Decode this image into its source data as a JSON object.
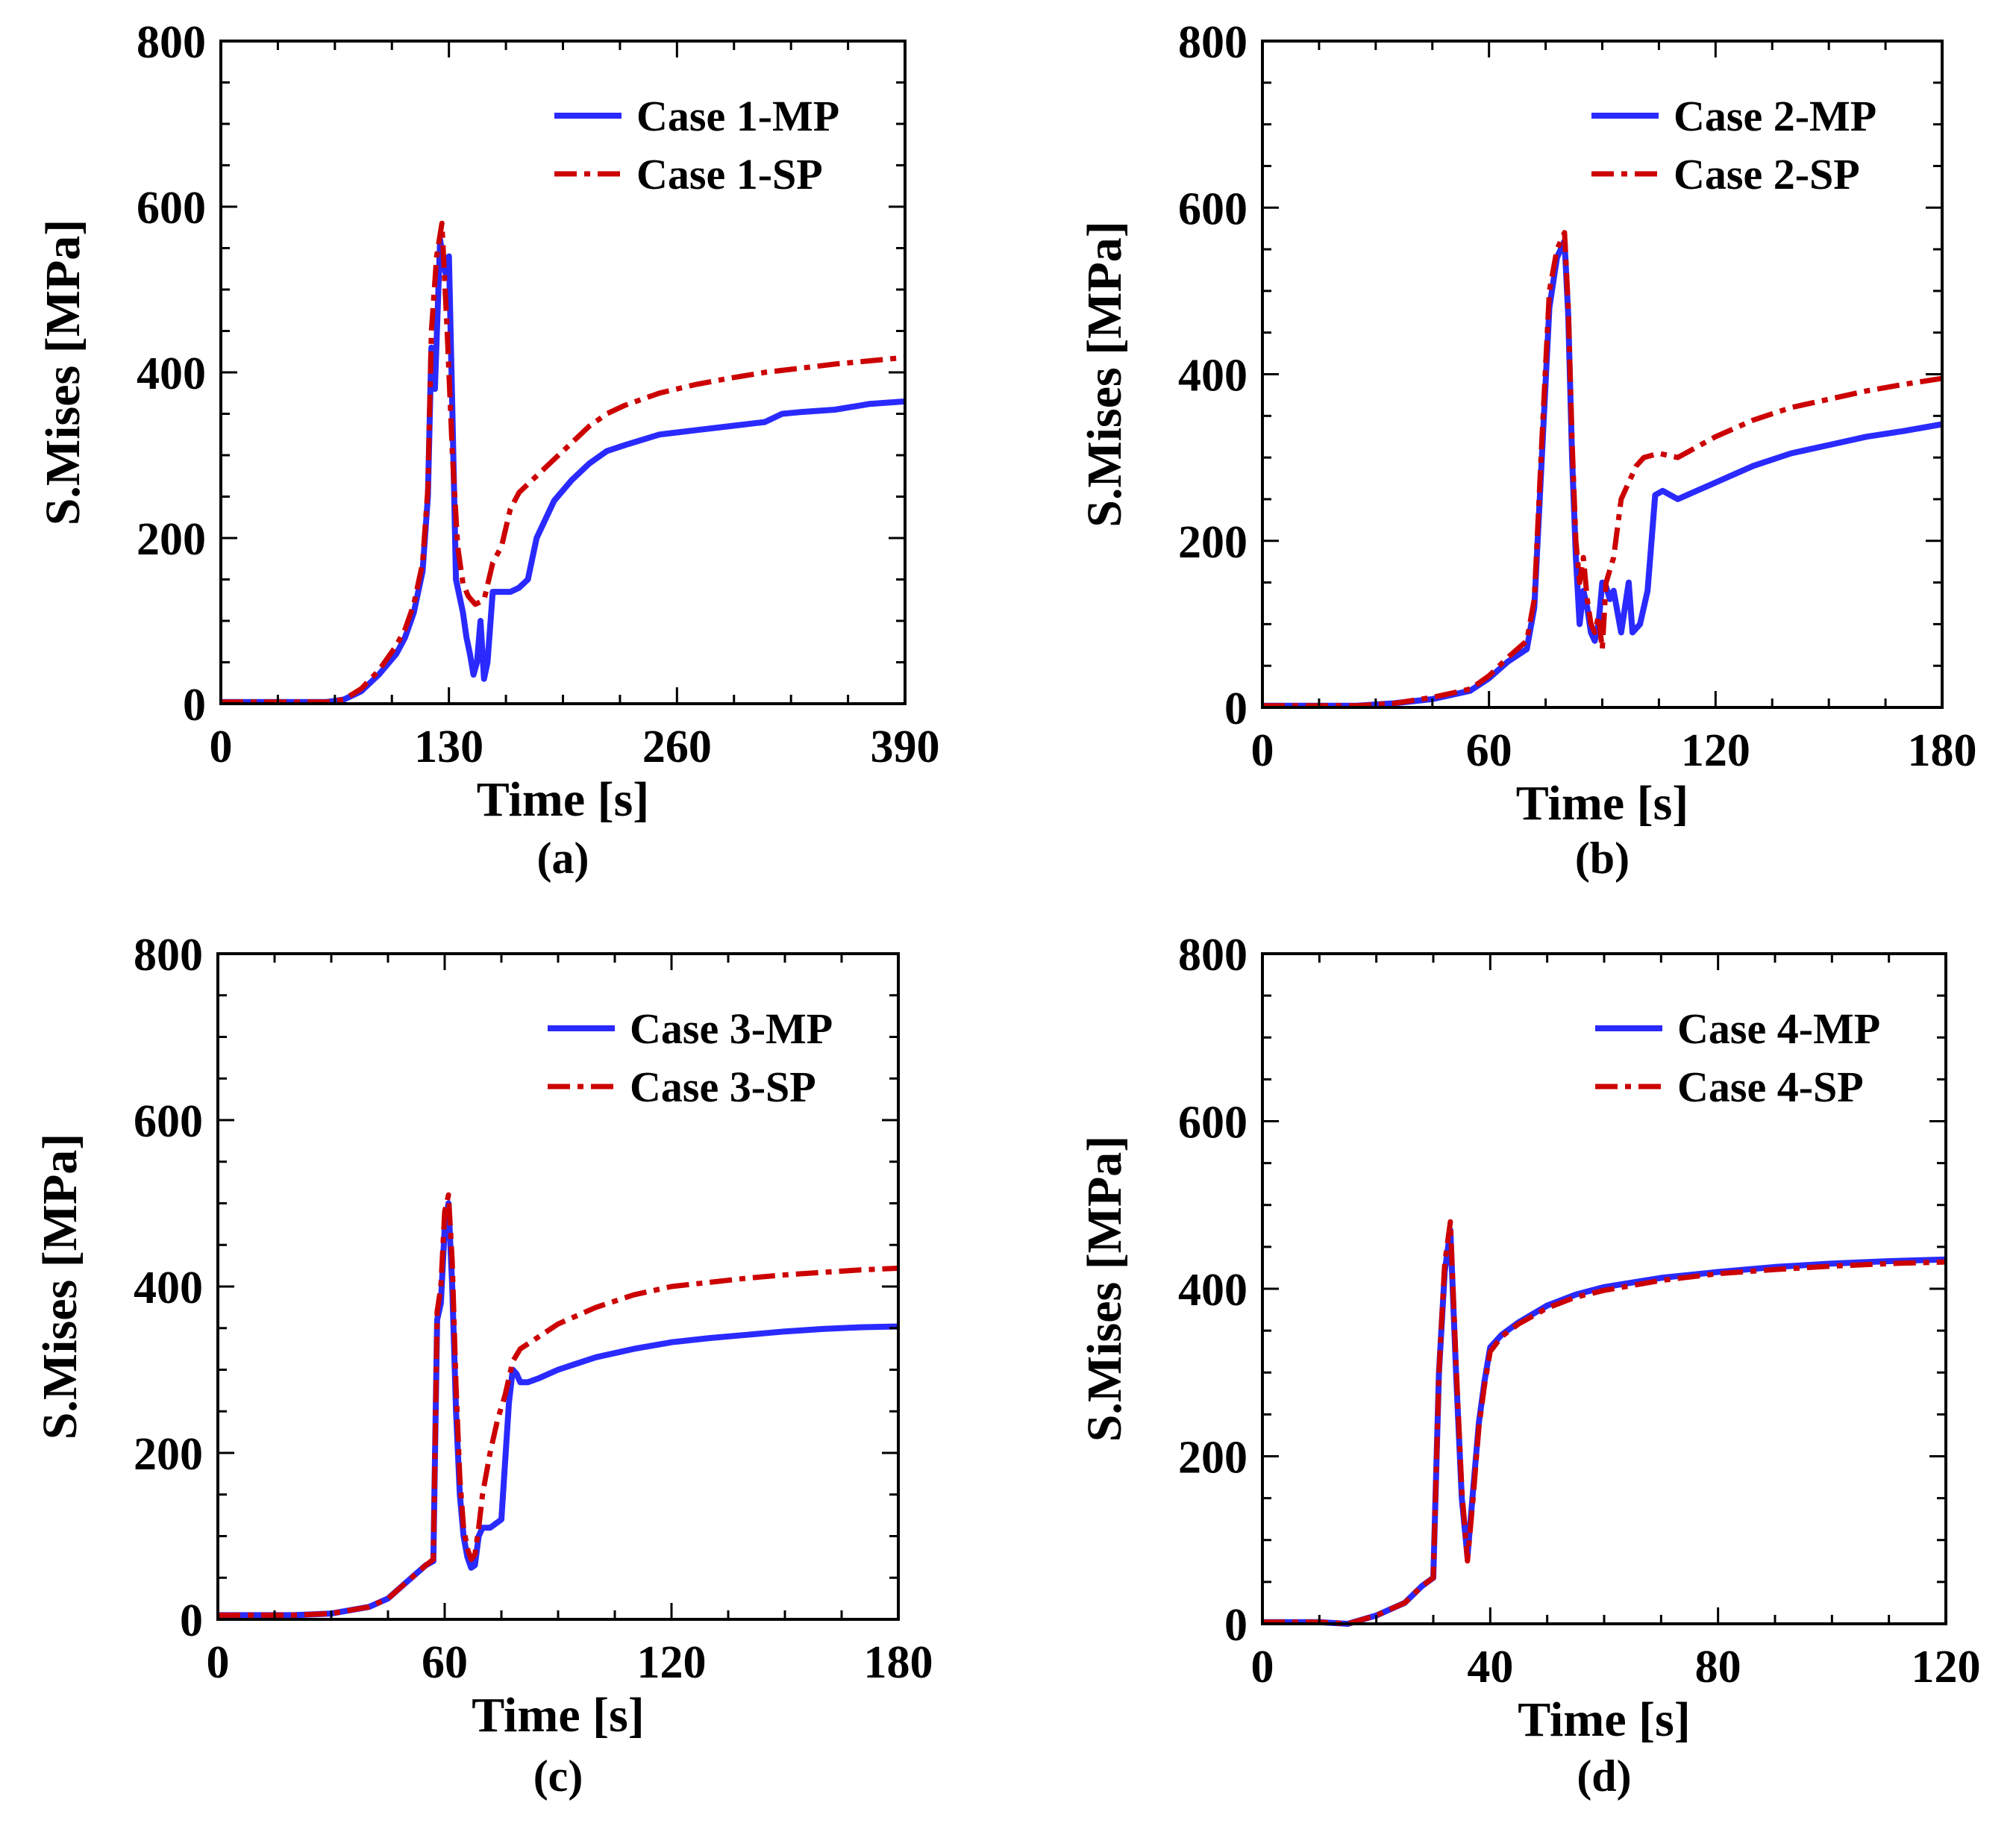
{
  "figure": {
    "colors": {
      "mp": "#2a2aff",
      "sp": "#cc0000",
      "axis": "#000000"
    }
  },
  "chart_data": [
    {
      "type": "line",
      "panel_label": "(a)",
      "xlabel": "Time [s]",
      "ylabel": "S.Mises [MPa]",
      "xlim": [
        0,
        390
      ],
      "ylim": [
        0,
        800
      ],
      "xticks": [
        0,
        130,
        260,
        390
      ],
      "xtick_labels": [
        "0",
        "130",
        "260",
        "390"
      ],
      "yticks": [
        0,
        200,
        400,
        600,
        800
      ],
      "ytick_labels": [
        "0",
        "200",
        "400",
        "600",
        "800"
      ],
      "legend_position": "top-right",
      "series": [
        {
          "name": "Case 1-MP",
          "style": "solid",
          "x": [
            0,
            30,
            60,
            70,
            80,
            90,
            100,
            105,
            110,
            115,
            118,
            120,
            122,
            125,
            128,
            130,
            132,
            134,
            136,
            138,
            140,
            142,
            144,
            146,
            148,
            150,
            152,
            155,
            160,
            165,
            170,
            175,
            180,
            190,
            200,
            210,
            220,
            230,
            250,
            270,
            290,
            310,
            320,
            330,
            350,
            370,
            390
          ],
          "y": [
            2,
            2,
            2,
            5,
            15,
            35,
            60,
            80,
            110,
            160,
            250,
            430,
            380,
            560,
            520,
            540,
            350,
            150,
            130,
            110,
            80,
            60,
            35,
            50,
            100,
            30,
            50,
            135,
            135,
            135,
            140,
            150,
            200,
            245,
            270,
            290,
            305,
            312,
            325,
            330,
            335,
            340,
            350,
            352,
            355,
            362,
            365
          ]
        },
        {
          "name": "Case 1-SP",
          "style": "dashdot",
          "x": [
            0,
            30,
            60,
            70,
            80,
            90,
            100,
            105,
            110,
            115,
            118,
            120,
            123,
            126,
            129,
            132,
            135,
            138,
            141,
            145,
            150,
            155,
            160,
            165,
            170,
            180,
            190,
            200,
            210,
            220,
            230,
            250,
            270,
            290,
            310,
            330,
            350,
            370,
            390
          ],
          "y": [
            2,
            2,
            2,
            5,
            18,
            40,
            70,
            90,
            120,
            170,
            260,
            450,
            540,
            580,
            450,
            300,
            190,
            145,
            130,
            120,
            125,
            170,
            190,
            235,
            255,
            275,
            295,
            315,
            335,
            350,
            360,
            375,
            385,
            393,
            400,
            405,
            410,
            414,
            418
          ]
        }
      ]
    },
    {
      "type": "line",
      "panel_label": "(b)",
      "xlabel": "Time [s]",
      "ylabel": "S.Mises [MPa]",
      "xlim": [
        0,
        180
      ],
      "ylim": [
        0,
        800
      ],
      "xticks": [
        0,
        60,
        120,
        180
      ],
      "xtick_labels": [
        "0",
        "60",
        "120",
        "180"
      ],
      "yticks": [
        0,
        200,
        400,
        600,
        800
      ],
      "ytick_labels": [
        "0",
        "200",
        "400",
        "600",
        "800"
      ],
      "legend_position": "top-right",
      "series": [
        {
          "name": "Case 2-MP",
          "style": "solid",
          "x": [
            0,
            25,
            35,
            45,
            55,
            60,
            65,
            70,
            72,
            74,
            76,
            78,
            80,
            81,
            82,
            83,
            84,
            85,
            86,
            87,
            88,
            89,
            90,
            91,
            92,
            93,
            95,
            97,
            98,
            100,
            102,
            104,
            106,
            110,
            120,
            130,
            140,
            150,
            160,
            170,
            180
          ],
          "y": [
            2,
            2,
            5,
            10,
            20,
            35,
            55,
            70,
            120,
            300,
            480,
            540,
            560,
            470,
            300,
            180,
            100,
            140,
            120,
            90,
            80,
            100,
            150,
            145,
            130,
            140,
            90,
            150,
            90,
            100,
            140,
            255,
            260,
            250,
            270,
            290,
            305,
            315,
            325,
            332,
            340
          ]
        },
        {
          "name": "Case 2-SP",
          "style": "dashdot",
          "x": [
            0,
            25,
            35,
            45,
            55,
            60,
            65,
            70,
            72,
            74,
            76,
            78,
            80,
            81,
            82,
            83,
            84,
            85,
            86,
            87,
            88,
            89,
            90,
            91,
            93,
            95,
            97,
            99,
            101,
            105,
            110,
            120,
            130,
            140,
            150,
            160,
            170,
            180
          ],
          "y": [
            2,
            2,
            5,
            12,
            22,
            38,
            60,
            80,
            130,
            320,
            500,
            550,
            570,
            480,
            320,
            200,
            150,
            180,
            130,
            100,
            90,
            110,
            70,
            150,
            180,
            250,
            270,
            290,
            300,
            305,
            300,
            325,
            345,
            360,
            370,
            380,
            388,
            395
          ]
        }
      ]
    },
    {
      "type": "line",
      "panel_label": "(c)",
      "xlabel": "Time [s]",
      "ylabel": "S.Mises [MPa]",
      "xlim": [
        0,
        180
      ],
      "ylim": [
        0,
        800
      ],
      "xticks": [
        0,
        60,
        120,
        180
      ],
      "xtick_labels": [
        "0",
        "60",
        "120",
        "180"
      ],
      "yticks": [
        0,
        200,
        400,
        600,
        800
      ],
      "ytick_labels": [
        "0",
        "200",
        "400",
        "600",
        "800"
      ],
      "legend_position": "top-right",
      "series": [
        {
          "name": "Case 3-MP",
          "style": "solid",
          "x": [
            0,
            20,
            30,
            40,
            45,
            50,
            55,
            57,
            58,
            59,
            60,
            61,
            62,
            63,
            64,
            65,
            66,
            67,
            68,
            69,
            70,
            72,
            75,
            77,
            78,
            79,
            80,
            82,
            85,
            90,
            100,
            110,
            120,
            130,
            140,
            150,
            160,
            170,
            180
          ],
          "y": [
            5,
            5,
            7,
            15,
            25,
            45,
            65,
            70,
            360,
            380,
            470,
            500,
            400,
            250,
            150,
            100,
            75,
            62,
            65,
            100,
            110,
            110,
            120,
            260,
            300,
            295,
            285,
            285,
            290,
            300,
            315,
            325,
            333,
            338,
            342,
            346,
            349,
            351,
            352
          ]
        },
        {
          "name": "Case 3-SP",
          "style": "dashdot",
          "x": [
            0,
            20,
            30,
            40,
            45,
            50,
            55,
            57,
            58,
            59,
            60,
            61,
            62,
            63,
            64,
            65,
            66,
            67,
            68,
            69,
            70,
            72,
            74,
            76,
            78,
            80,
            85,
            90,
            100,
            110,
            120,
            130,
            140,
            150,
            160,
            170,
            180
          ],
          "y": [
            5,
            5,
            7,
            15,
            25,
            45,
            65,
            72,
            370,
            400,
            490,
            510,
            430,
            280,
            170,
            110,
            85,
            72,
            78,
            110,
            150,
            200,
            240,
            270,
            310,
            325,
            340,
            355,
            375,
            390,
            400,
            405,
            410,
            414,
            417,
            420,
            422
          ]
        }
      ]
    },
    {
      "type": "line",
      "panel_label": "(d)",
      "xlabel": "Time [s]",
      "ylabel": "S.Mises [MPa]",
      "xlim": [
        0,
        120
      ],
      "ylim": [
        0,
        800
      ],
      "xticks": [
        0,
        40,
        80,
        120
      ],
      "xtick_labels": [
        "0",
        "40",
        "80",
        "120"
      ],
      "yticks": [
        0,
        200,
        400,
        600,
        800
      ],
      "ytick_labels": [
        "0",
        "200",
        "400",
        "600",
        "800"
      ],
      "legend_position": "top-right",
      "series": [
        {
          "name": "Case 4-MP",
          "style": "solid",
          "x": [
            0,
            10,
            15,
            20,
            25,
            28,
            30,
            31,
            32,
            33,
            34,
            35,
            36,
            37,
            38,
            39,
            40,
            42,
            45,
            50,
            55,
            60,
            70,
            80,
            90,
            100,
            110,
            120
          ],
          "y": [
            2,
            2,
            0,
            10,
            25,
            45,
            55,
            300,
            420,
            470,
            300,
            150,
            80,
            160,
            240,
            290,
            330,
            345,
            360,
            380,
            393,
            402,
            413,
            420,
            426,
            430,
            433,
            435
          ]
        },
        {
          "name": "Case 4-SP",
          "style": "dashdot",
          "x": [
            0,
            10,
            15,
            20,
            25,
            28,
            30,
            31,
            32,
            33,
            34,
            35,
            36,
            37,
            38,
            39,
            40,
            42,
            45,
            50,
            55,
            60,
            70,
            80,
            90,
            100,
            110,
            120
          ],
          "y": [
            2,
            2,
            0,
            10,
            25,
            45,
            55,
            300,
            430,
            480,
            310,
            160,
            75,
            150,
            235,
            285,
            325,
            343,
            358,
            377,
            390,
            398,
            410,
            418,
            423,
            427,
            430,
            432
          ]
        }
      ]
    }
  ]
}
